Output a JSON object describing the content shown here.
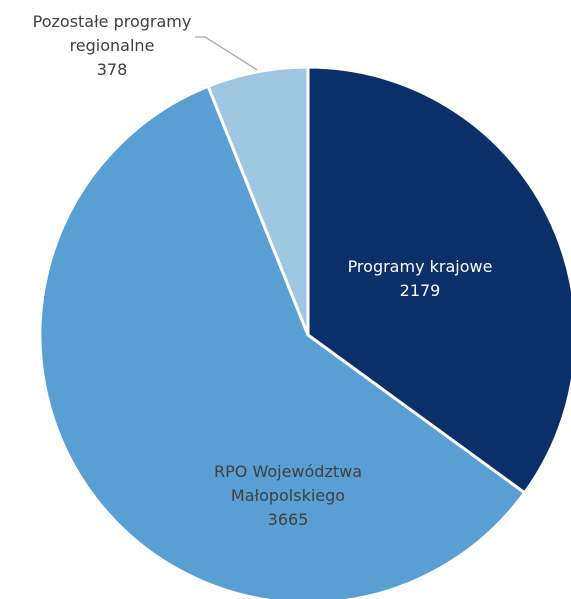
{
  "chart_data": {
    "type": "pie",
    "categories": [
      "Programy krajowe",
      "RPO Województwa Małopolskiego",
      "Pozostałe programy regionalne"
    ],
    "values": [
      2179,
      3665,
      378
    ],
    "colors": [
      "#0b2f69",
      "#5a9fd4",
      "#9fc7e1"
    ]
  }
}
